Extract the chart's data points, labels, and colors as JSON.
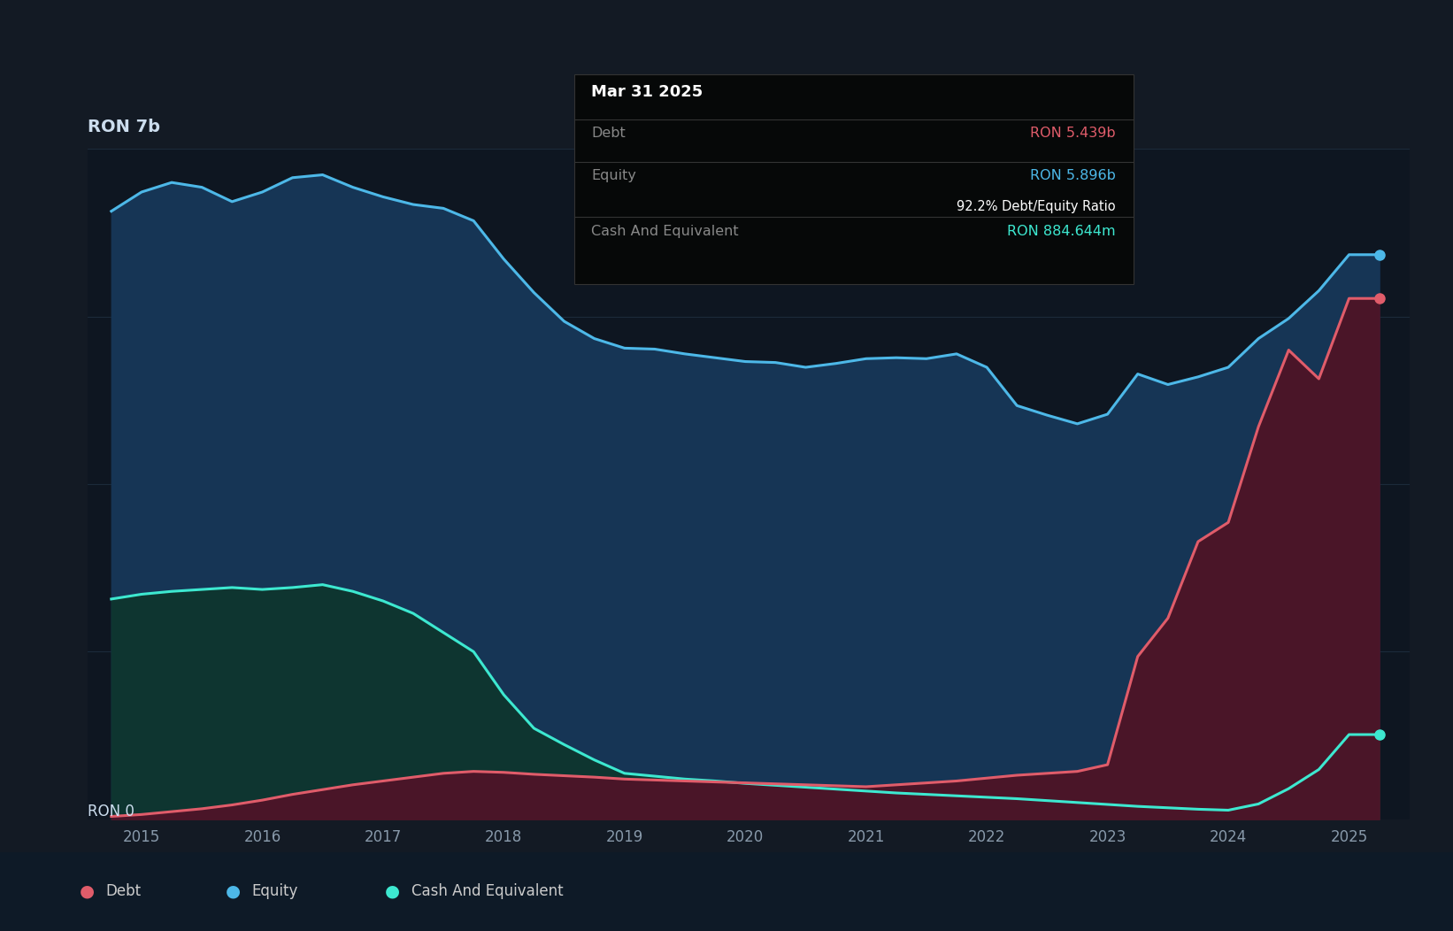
{
  "background_color": "#131a24",
  "plot_bg_color": "#0e1621",
  "ylabel": "RON 7b",
  "y_zero_label": "RON 0",
  "x_start_year": 2014.55,
  "x_end_year": 2025.5,
  "y_max": 7000000000,
  "x_tick_labels": [
    "2015",
    "2016",
    "2017",
    "2018",
    "2019",
    "2020",
    "2021",
    "2022",
    "2023",
    "2024",
    "2025"
  ],
  "x_tick_positions": [
    2015,
    2016,
    2017,
    2018,
    2019,
    2020,
    2021,
    2022,
    2023,
    2024,
    2025
  ],
  "legend_items": [
    {
      "label": "Debt",
      "color": "#e05c6a"
    },
    {
      "label": "Equity",
      "color": "#4db8e8"
    },
    {
      "label": "Cash And Equivalent",
      "color": "#3de8d0"
    }
  ],
  "tooltip_box": {
    "title": "Mar 31 2025",
    "debt_label": "Debt",
    "debt_value": "RON 5.439b",
    "debt_color": "#e05c6a",
    "equity_label": "Equity",
    "equity_value": "RON 5.896b",
    "equity_color": "#4db8e8",
    "ratio_text": "92.2% Debt/Equity Ratio",
    "cash_label": "Cash And Equivalent",
    "cash_value": "RON 884.644m",
    "cash_color": "#3de8d0",
    "bg_color": "#060808",
    "border_color": "#333333",
    "text_color": "#ffffff",
    "label_color": "#888888"
  },
  "equity_color": "#4db8e8",
  "equity_fill": "#163555",
  "debt_color": "#e05c6a",
  "debt_fill": "#4a1528",
  "cash_color": "#3de8d0",
  "cash_fill": "#0e3530",
  "grid_color": "#1e2d3d",
  "equity_data": {
    "years": [
      2014.75,
      2015.0,
      2015.25,
      2015.5,
      2015.75,
      2016.0,
      2016.25,
      2016.5,
      2016.75,
      2017.0,
      2017.25,
      2017.5,
      2017.75,
      2018.0,
      2018.25,
      2018.5,
      2018.75,
      2019.0,
      2019.25,
      2019.5,
      2019.75,
      2020.0,
      2020.25,
      2020.5,
      2020.75,
      2021.0,
      2021.25,
      2021.5,
      2021.75,
      2022.0,
      2022.25,
      2022.5,
      2022.75,
      2023.0,
      2023.25,
      2023.5,
      2023.75,
      2024.0,
      2024.25,
      2024.5,
      2024.75,
      2025.0,
      2025.25
    ],
    "values": [
      6350000000,
      6550000000,
      6650000000,
      6600000000,
      6450000000,
      6550000000,
      6700000000,
      6730000000,
      6600000000,
      6500000000,
      6420000000,
      6380000000,
      6250000000,
      5850000000,
      5500000000,
      5200000000,
      5020000000,
      4920000000,
      4910000000,
      4860000000,
      4820000000,
      4780000000,
      4770000000,
      4720000000,
      4760000000,
      4810000000,
      4820000000,
      4810000000,
      4860000000,
      4720000000,
      4320000000,
      4220000000,
      4130000000,
      4230000000,
      4650000000,
      4540000000,
      4620000000,
      4720000000,
      5020000000,
      5230000000,
      5520000000,
      5896000000,
      5896000000
    ]
  },
  "debt_data": {
    "years": [
      2014.75,
      2015.0,
      2015.25,
      2015.5,
      2015.75,
      2016.0,
      2016.25,
      2016.5,
      2016.75,
      2017.0,
      2017.25,
      2017.5,
      2017.75,
      2018.0,
      2018.25,
      2018.5,
      2018.75,
      2019.0,
      2019.25,
      2019.5,
      2019.75,
      2020.0,
      2020.25,
      2020.5,
      2020.75,
      2021.0,
      2021.25,
      2021.5,
      2021.75,
      2022.0,
      2022.25,
      2022.5,
      2022.75,
      2023.0,
      2023.25,
      2023.5,
      2023.75,
      2024.0,
      2024.25,
      2024.5,
      2024.75,
      2025.0,
      2025.25
    ],
    "values": [
      30000000,
      50000000,
      80000000,
      110000000,
      150000000,
      200000000,
      260000000,
      310000000,
      360000000,
      400000000,
      440000000,
      480000000,
      500000000,
      490000000,
      470000000,
      455000000,
      440000000,
      420000000,
      410000000,
      400000000,
      390000000,
      380000000,
      370000000,
      360000000,
      350000000,
      340000000,
      360000000,
      380000000,
      400000000,
      430000000,
      460000000,
      480000000,
      500000000,
      570000000,
      1700000000,
      2100000000,
      2900000000,
      3100000000,
      4100000000,
      4900000000,
      4600000000,
      5439000000,
      5439000000
    ]
  },
  "cash_data": {
    "years": [
      2014.75,
      2015.0,
      2015.25,
      2015.5,
      2015.75,
      2016.0,
      2016.25,
      2016.5,
      2016.75,
      2017.0,
      2017.25,
      2017.5,
      2017.75,
      2018.0,
      2018.25,
      2018.5,
      2018.75,
      2019.0,
      2019.25,
      2019.5,
      2019.75,
      2020.0,
      2020.25,
      2020.5,
      2020.75,
      2021.0,
      2021.25,
      2021.5,
      2021.75,
      2022.0,
      2022.25,
      2022.5,
      2022.75,
      2023.0,
      2023.25,
      2023.5,
      2023.75,
      2024.0,
      2024.25,
      2024.5,
      2024.75,
      2025.0,
      2025.25
    ],
    "values": [
      2300000000,
      2350000000,
      2380000000,
      2400000000,
      2420000000,
      2400000000,
      2420000000,
      2450000000,
      2380000000,
      2280000000,
      2150000000,
      1950000000,
      1750000000,
      1300000000,
      950000000,
      780000000,
      620000000,
      480000000,
      450000000,
      420000000,
      400000000,
      375000000,
      355000000,
      335000000,
      315000000,
      295000000,
      275000000,
      260000000,
      245000000,
      230000000,
      215000000,
      195000000,
      175000000,
      155000000,
      135000000,
      120000000,
      105000000,
      95000000,
      160000000,
      320000000,
      520000000,
      884644000,
      884644000
    ]
  }
}
